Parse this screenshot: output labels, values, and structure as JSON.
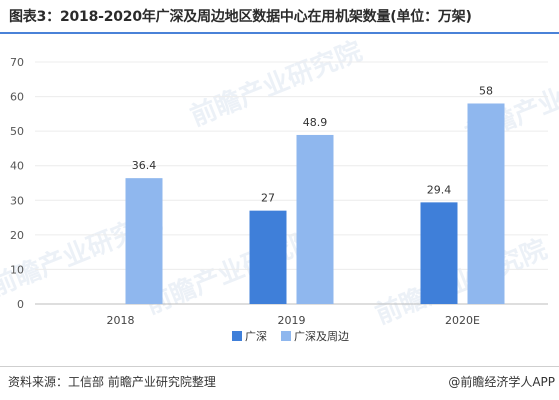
{
  "title": "图表3：2018-2020年广深及周边地区数据中心在用机架数量(单位：万架)",
  "source": "资料来源：工信部 前瞻产业研究院整理",
  "brand": "@前瞻经济学人APP",
  "watermark": "前瞻产业研究院",
  "colors": {
    "accent": "#4a82d8",
    "series1": "#3f7fd9",
    "series2": "#8fb7ee"
  },
  "chart_data": {
    "type": "bar",
    "categories": [
      "2018",
      "2019",
      "2020E"
    ],
    "series": [
      {
        "name": "广深",
        "values": [
          null,
          27,
          29.4
        ],
        "labels": [
          "",
          "27",
          "29.4"
        ]
      },
      {
        "name": "广深及周边",
        "values": [
          36.4,
          48.9,
          58
        ],
        "labels": [
          "36.4",
          "48.9",
          "58"
        ]
      }
    ],
    "ylim": [
      0,
      70
    ],
    "yticks": [
      0,
      10,
      20,
      30,
      40,
      50,
      60,
      70
    ],
    "legend": "bottom-center"
  }
}
